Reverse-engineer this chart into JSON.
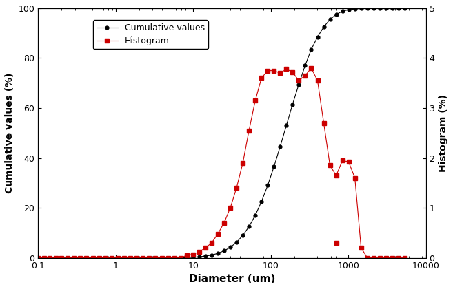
{
  "title": "",
  "xlabel": "Diameter (um)",
  "ylabel_left": "Cumulative values (%)",
  "ylabel_right": "Histogram (%)",
  "legend_cumulative": "Cumulative values",
  "legend_histogram": "Histogram",
  "xlim_log": [
    0.1,
    10000
  ],
  "ylim_left": [
    0,
    100
  ],
  "ylim_right": [
    0,
    5
  ],
  "yticks_left": [
    0,
    20,
    40,
    60,
    80,
    100
  ],
  "yticks_right": [
    0,
    1,
    2,
    3,
    4,
    5
  ],
  "xticks": [
    0.1,
    1,
    10,
    100,
    1000,
    10000
  ],
  "xtick_labels": [
    "0.1",
    "1",
    "10",
    "100",
    "1000",
    "10000"
  ],
  "cumulative_x": [
    0.1,
    0.12,
    0.14,
    0.17,
    0.2,
    0.24,
    0.29,
    0.35,
    0.42,
    0.51,
    0.61,
    0.74,
    0.89,
    1.07,
    1.29,
    1.55,
    1.87,
    2.25,
    2.71,
    3.26,
    3.93,
    4.73,
    5.69,
    6.85,
    8.24,
    9.92,
    11.9,
    14.4,
    17.3,
    20.8,
    25.0,
    30.1,
    36.2,
    43.6,
    52.4,
    63.1,
    75.9,
    91.3,
    110,
    132,
    159,
    191,
    230,
    277,
    333,
    401,
    482,
    580,
    698,
    840,
    1010,
    1215,
    1462,
    1760,
    2117,
    2547,
    3065,
    3688,
    4437,
    5337
  ],
  "cumulative_y": [
    0,
    0,
    0,
    0,
    0,
    0,
    0,
    0,
    0,
    0,
    0,
    0,
    0,
    0,
    0,
    0,
    0,
    0,
    0,
    0,
    0,
    0,
    0,
    0,
    0.1,
    0.2,
    0.4,
    0.7,
    1.1,
    1.8,
    2.8,
    4.2,
    6.2,
    9.0,
    12.5,
    17.0,
    22.5,
    29.0,
    36.5,
    44.5,
    53.0,
    61.5,
    69.5,
    77.0,
    83.5,
    88.5,
    92.5,
    95.5,
    97.5,
    98.8,
    99.4,
    99.7,
    99.9,
    100,
    100,
    100,
    100,
    100,
    100,
    100
  ],
  "histogram_x": [
    0.1,
    0.12,
    0.14,
    0.17,
    0.2,
    0.24,
    0.29,
    0.35,
    0.42,
    0.51,
    0.61,
    0.74,
    0.89,
    1.07,
    1.29,
    1.55,
    1.87,
    2.25,
    2.71,
    3.26,
    3.93,
    4.73,
    5.69,
    6.85,
    8.24,
    9.92,
    11.9,
    14.4,
    17.3,
    20.8,
    25.0,
    30.1,
    36.2,
    43.6,
    52.4,
    63.1,
    75.9,
    91.3,
    110,
    132,
    159,
    191,
    230,
    277,
    333,
    401,
    482,
    580,
    698,
    840,
    1010,
    1215,
    1462,
    1760,
    2117,
    2547,
    3065,
    3688,
    4437,
    5337
  ],
  "histogram_y": [
    0,
    0,
    0,
    0,
    0,
    0,
    0,
    0,
    0,
    0,
    0,
    0,
    0,
    0,
    0,
    0,
    0,
    0,
    0,
    0,
    0,
    0,
    0,
    0,
    0.05,
    0.07,
    0.12,
    0.2,
    0.3,
    0.48,
    0.7,
    1.0,
    1.4,
    1.9,
    2.55,
    3.15,
    3.6,
    3.75,
    3.75,
    3.7,
    3.78,
    3.72,
    3.55,
    3.65,
    3.8,
    3.55,
    2.7,
    1.85,
    1.65,
    1.95,
    1.92,
    1.6,
    0.2,
    0,
    0,
    0,
    0,
    0,
    0,
    0
  ],
  "histogram_lone_x": [
    698
  ],
  "histogram_lone_y": [
    0.3
  ],
  "line_color_cumulative": "#000000",
  "line_color_histogram": "#cc0000",
  "marker_cumulative": "o",
  "marker_histogram": "s",
  "markersize_cumulative": 3.5,
  "markersize_histogram": 4.5,
  "linewidth": 0.8,
  "background_color": "#ffffff",
  "legend_fontsize": 9,
  "axis_fontsize": 10,
  "xlabel_fontsize": 11
}
